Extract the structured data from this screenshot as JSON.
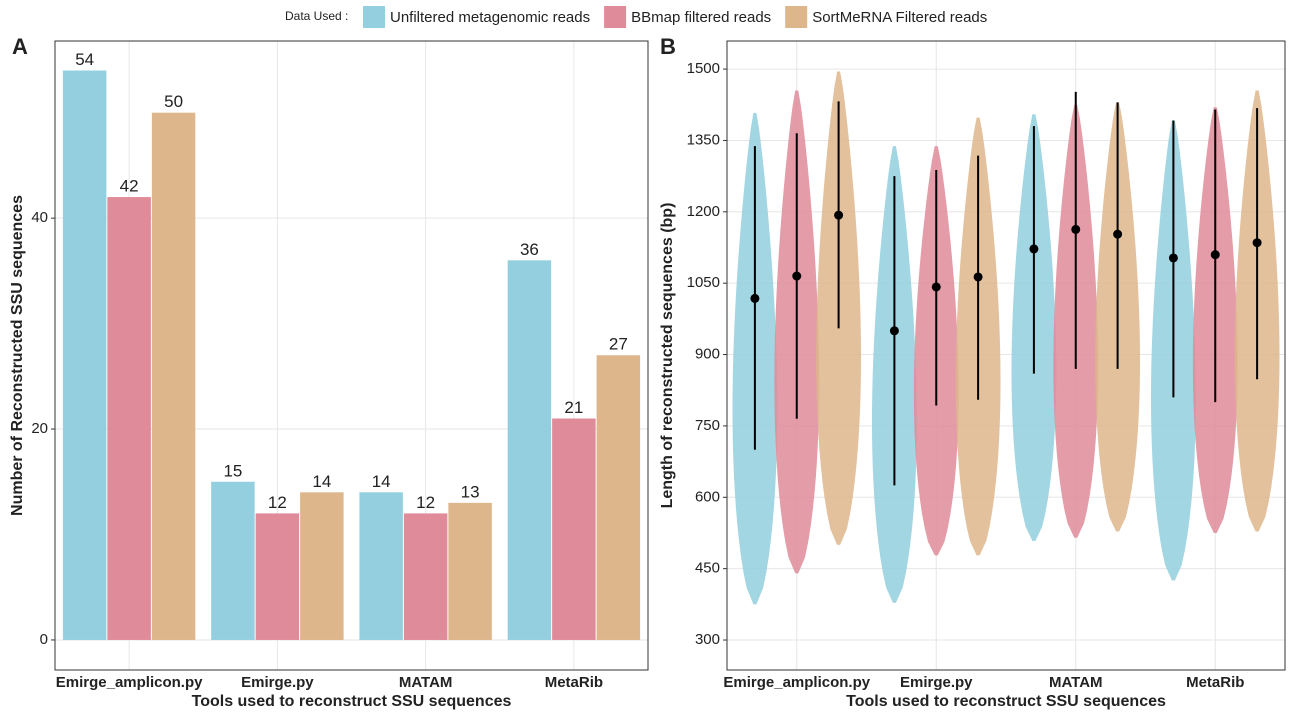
{
  "legend_title": "Data Used :",
  "chart_data": [
    {
      "type": "bar",
      "panel_label": "A",
      "x_label": "Tools used to reconstruct SSU sequences",
      "y_label": "Number of Reconstructed SSU  sequences",
      "categories": [
        "Emirge_amplicon.py",
        "Emirge.py",
        "MATAM",
        "MetaRib"
      ],
      "series": [
        {
          "name": "Unfiltered metagenomic reads",
          "color": "#93cfde",
          "values": [
            54,
            15,
            14,
            36
          ]
        },
        {
          "name": "BBmap filtered reads",
          "color": "#df8b99",
          "values": [
            42,
            12,
            12,
            21
          ]
        },
        {
          "name": "SortMeRNA Filtered reads",
          "color": "#deb68c",
          "values": [
            50,
            14,
            13,
            27
          ]
        }
      ],
      "ylim": [
        -2.85,
        56.8
      ],
      "yticks": [
        0,
        20,
        40
      ],
      "grid": true
    },
    {
      "type": "violin",
      "panel_label": "B",
      "x_label": "Tools used to reconstruct SSU sequences",
      "y_label": "Length of reconstructed sequences (bp)",
      "categories": [
        "Emirge_amplicon.py",
        "Emirge.py",
        "MATAM",
        "MetaRib"
      ],
      "series": [
        {
          "color": "#93cfde",
          "min": [
            375,
            378,
            508,
            425
          ],
          "max": [
            1408,
            1338,
            1405,
            1392
          ],
          "point": [
            1018,
            950,
            1122,
            1103
          ],
          "lower": [
            700,
            625,
            860,
            810
          ],
          "upper": [
            1338,
            1275,
            1380,
            1392
          ]
        },
        {
          "color": "#df8b99",
          "min": [
            440,
            478,
            515,
            525
          ],
          "max": [
            1455,
            1338,
            1425,
            1420
          ],
          "point": [
            1065,
            1042,
            1163,
            1110
          ],
          "lower": [
            765,
            793,
            870,
            800
          ],
          "upper": [
            1365,
            1288,
            1452,
            1415
          ]
        },
        {
          "color": "#deb68c",
          "min": [
            500,
            478,
            528,
            528
          ],
          "max": [
            1495,
            1398,
            1430,
            1455
          ],
          "point": [
            1193,
            1063,
            1153,
            1135
          ],
          "lower": [
            955,
            805,
            870,
            848
          ],
          "upper": [
            1432,
            1318,
            1430,
            1418
          ]
        }
      ],
      "ylim": [
        237,
        1559
      ],
      "yticks": [
        300,
        450,
        600,
        750,
        900,
        1050,
        1200,
        1350,
        1500
      ],
      "grid": true
    }
  ]
}
